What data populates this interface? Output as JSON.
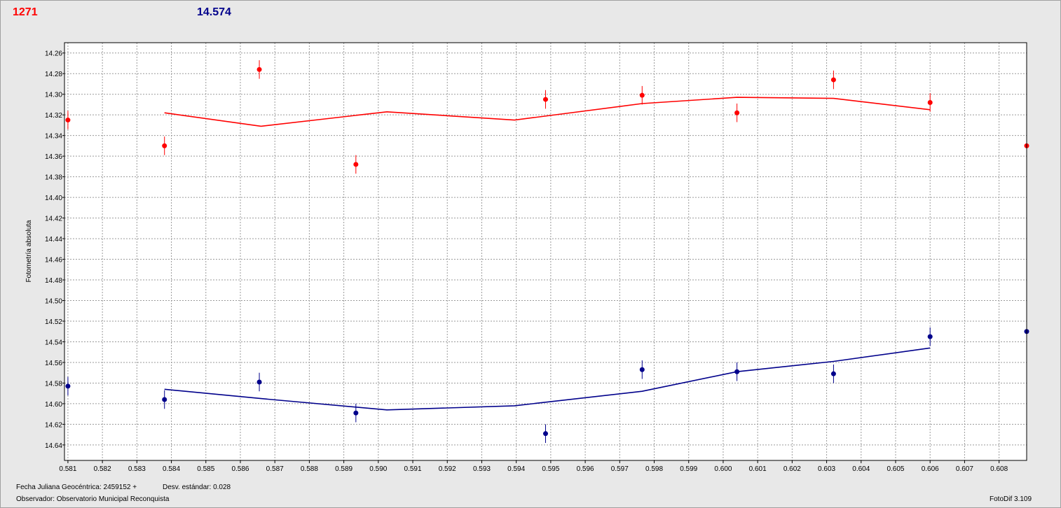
{
  "header": {
    "red_value": "1271",
    "blue_value": "14.574"
  },
  "footer": {
    "date_label": "Fecha Juliana Geocéntrica: 2459152 +",
    "std_label": "Desv. estándar: 0.028",
    "observer_label": "Observador: Observatorio Municipal Reconquista",
    "app_version": "FotoDif 3.109"
  },
  "colors": {
    "red": "#ff0000",
    "blue": "#00008b",
    "grid": "#9a9a9a"
  },
  "chart_data": {
    "type": "scatter",
    "ylabel": "Fotometría absoluta",
    "xlabel": "",
    "xlim": [
      0.5809,
      0.6088
    ],
    "ylim": [
      14.25,
      14.655
    ],
    "y_inverted": true,
    "grid": true,
    "x_ticks": [
      "0.581",
      "0.582",
      "0.583",
      "0.584",
      "0.585",
      "0.586",
      "0.587",
      "0.588",
      "0.589",
      "0.590",
      "0.591",
      "0.592",
      "0.593",
      "0.594",
      "0.595",
      "0.596",
      "0.597",
      "0.598",
      "0.599",
      "0.600",
      "0.601",
      "0.602",
      "0.603",
      "0.604",
      "0.605",
      "0.606",
      "0.607",
      "0.608"
    ],
    "y_ticks": [
      "14.26",
      "14.28",
      "14.30",
      "14.32",
      "14.34",
      "14.36",
      "14.38",
      "14.40",
      "14.42",
      "14.44",
      "14.46",
      "14.48",
      "14.50",
      "14.52",
      "14.54",
      "14.56",
      "14.58",
      "14.60",
      "14.62",
      "14.64"
    ],
    "series": [
      {
        "color": "#ff0000",
        "points": [
          {
            "x": 0.581,
            "y": 14.325,
            "err": 0.009
          },
          {
            "x": 0.5838,
            "y": 14.35,
            "err": 0.009
          },
          {
            "x": 0.58655,
            "y": 14.276,
            "err": 0.009
          },
          {
            "x": 0.58935,
            "y": 14.368,
            "err": 0.009
          },
          {
            "x": 0.59485,
            "y": 14.305,
            "err": 0.009
          },
          {
            "x": 0.59765,
            "y": 14.301,
            "err": 0.009
          },
          {
            "x": 0.6004,
            "y": 14.318,
            "err": 0.009
          },
          {
            "x": 0.6032,
            "y": 14.286,
            "err": 0.009
          },
          {
            "x": 0.606,
            "y": 14.308,
            "err": 0.009
          },
          {
            "x": 0.6088,
            "y": 14.35,
            "err": 0.009
          }
        ],
        "trend": [
          {
            "x": 0.5838,
            "y": 14.318
          },
          {
            "x": 0.5866,
            "y": 14.331
          },
          {
            "x": 0.59025,
            "y": 14.317
          },
          {
            "x": 0.59395,
            "y": 14.325
          },
          {
            "x": 0.59765,
            "y": 14.309
          },
          {
            "x": 0.6004,
            "y": 14.303
          },
          {
            "x": 0.6032,
            "y": 14.304
          },
          {
            "x": 0.606,
            "y": 14.315
          }
        ]
      },
      {
        "color": "#00008b",
        "points": [
          {
            "x": 0.581,
            "y": 14.583,
            "err": 0.009
          },
          {
            "x": 0.5838,
            "y": 14.596,
            "err": 0.009
          },
          {
            "x": 0.58655,
            "y": 14.579,
            "err": 0.009
          },
          {
            "x": 0.58935,
            "y": 14.609,
            "err": 0.009
          },
          {
            "x": 0.59485,
            "y": 14.629,
            "err": 0.009
          },
          {
            "x": 0.59765,
            "y": 14.567,
            "err": 0.009
          },
          {
            "x": 0.6004,
            "y": 14.569,
            "err": 0.009
          },
          {
            "x": 0.6032,
            "y": 14.571,
            "err": 0.009
          },
          {
            "x": 0.606,
            "y": 14.535,
            "err": 0.009
          },
          {
            "x": 0.6088,
            "y": 14.53,
            "err": 0.009
          }
        ],
        "trend": [
          {
            "x": 0.5838,
            "y": 14.586
          },
          {
            "x": 0.5866,
            "y": 14.595
          },
          {
            "x": 0.59025,
            "y": 14.606
          },
          {
            "x": 0.59395,
            "y": 14.602
          },
          {
            "x": 0.59765,
            "y": 14.588
          },
          {
            "x": 0.6004,
            "y": 14.569
          },
          {
            "x": 0.6032,
            "y": 14.559
          },
          {
            "x": 0.606,
            "y": 14.546
          }
        ]
      }
    ]
  }
}
